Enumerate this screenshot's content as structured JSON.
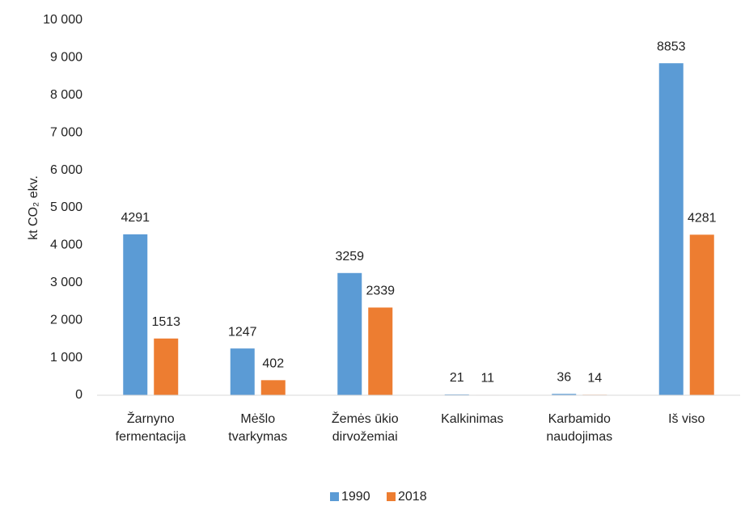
{
  "chart_data": {
    "type": "bar",
    "y_label": "kt CO₂ ekv.",
    "categories": [
      "Žarnyno\nfermentacija",
      "Mėšlo\ntvarkymas",
      "Žemės ūkio\ndirvožemiai",
      "Kalkinimas",
      "Karbamido\nnaudojimas",
      "Iš viso"
    ],
    "series": [
      {
        "name": "1990",
        "color": "#5b9bd5",
        "values": [
          4291,
          1247,
          3259,
          21,
          36,
          8853
        ]
      },
      {
        "name": "2018",
        "color": "#ed7d31",
        "values": [
          1513,
          402,
          2339,
          11,
          14,
          4281
        ]
      }
    ],
    "ylim": [
      0,
      10000
    ],
    "yticks": [
      0,
      {
        "value": 1000,
        "label": "1 000"
      },
      {
        "value": 2000,
        "label": "2 000"
      },
      {
        "value": 3000,
        "label": "3 000"
      },
      {
        "value": 4000,
        "label": "4 000"
      },
      {
        "value": 5000,
        "label": "5 000"
      },
      {
        "value": 6000,
        "label": "6 000"
      },
      {
        "value": 7000,
        "label": "7 000"
      },
      {
        "value": 8000,
        "label": "8 000"
      },
      {
        "value": 9000,
        "label": "9 000"
      },
      {
        "value": 10000,
        "label": "10 000"
      }
    ],
    "grid": false,
    "legend": "bottom"
  }
}
